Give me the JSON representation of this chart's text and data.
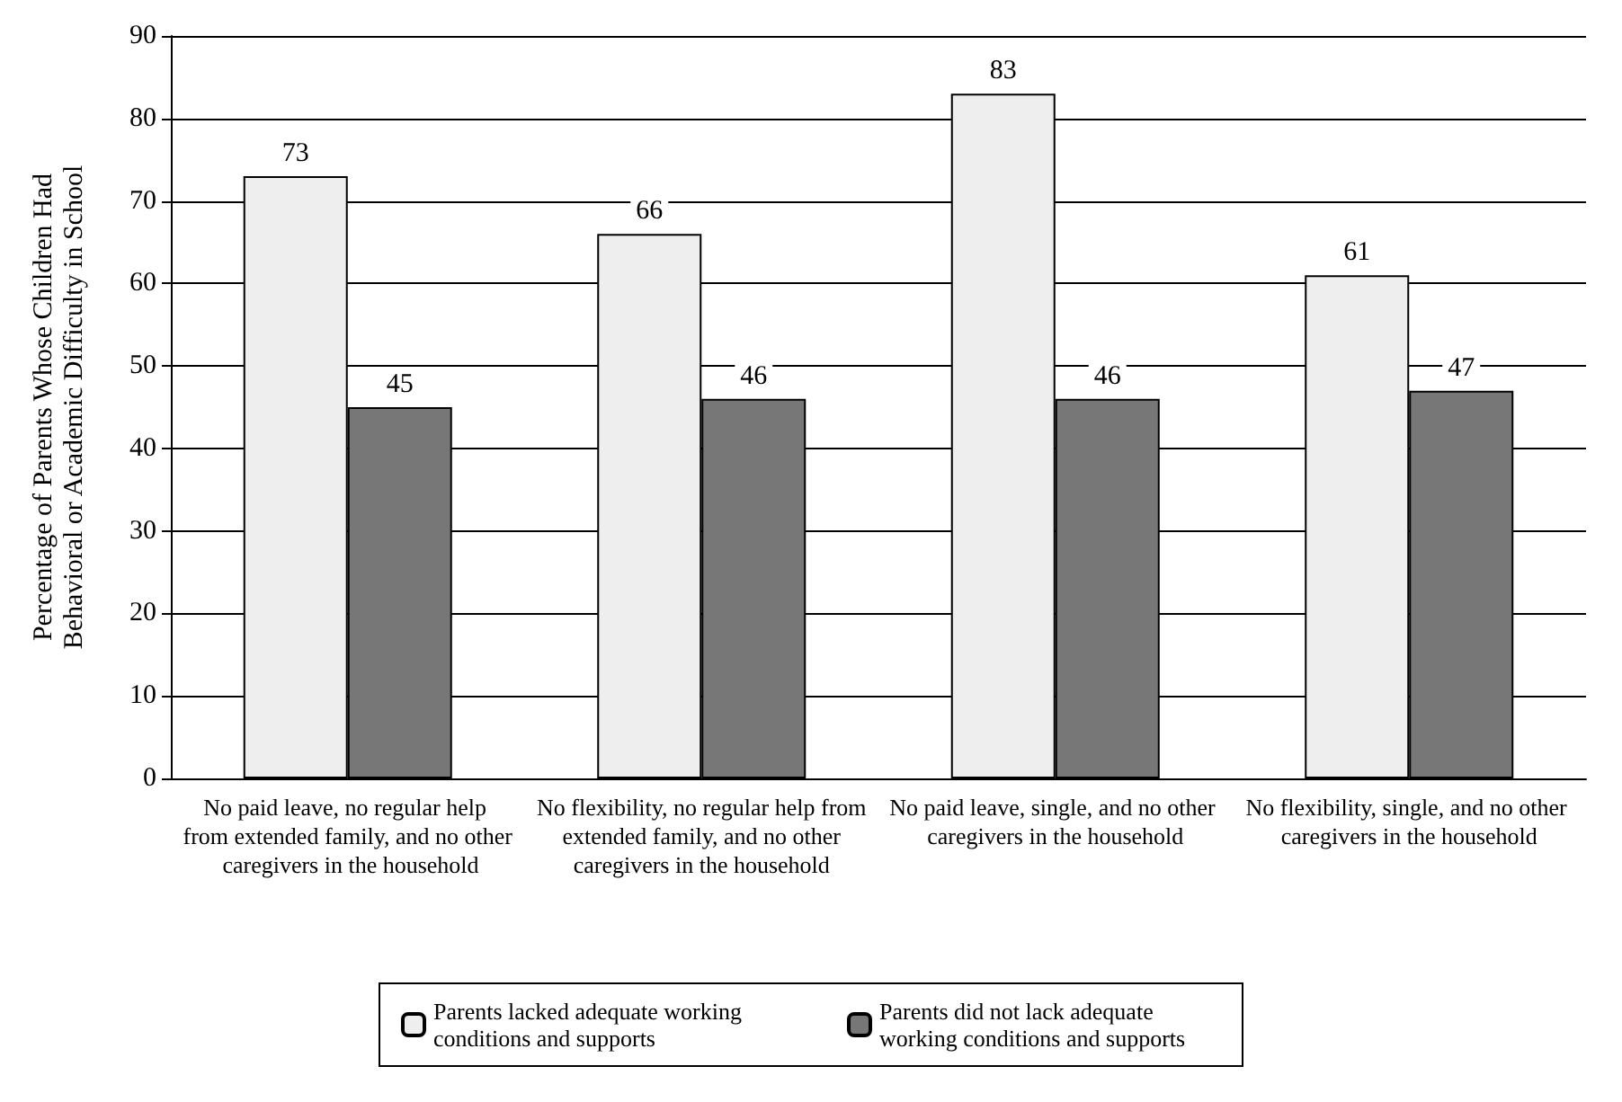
{
  "chart_data": {
    "type": "bar",
    "ylabel": "Percentage of Parents Whose Children Had Behavioral or Academic Difficulty in School",
    "categories": [
      "No paid leave, no regular help from extended family, and no other caregivers in the household",
      "No flexibility, no regular help from extended family, and no other caregivers in the household",
      "No paid leave, single, and no other caregivers in the household",
      "No flexibility, single, and no other caregivers in the household"
    ],
    "series": [
      {
        "name": "Parents lacked adequate working conditions and supports",
        "color": "#eeeeee",
        "values": [
          73,
          66,
          83,
          61
        ]
      },
      {
        "name": "Parents did not lack adequate working conditions and supports",
        "color": "#777777",
        "values": [
          45,
          46,
          46,
          47
        ]
      }
    ],
    "ylim": [
      0,
      90
    ],
    "yticks": [
      0,
      10,
      20,
      30,
      40,
      50,
      60,
      70,
      80,
      90
    ],
    "grid": "y",
    "legend": "bottom",
    "data_labels": true
  }
}
